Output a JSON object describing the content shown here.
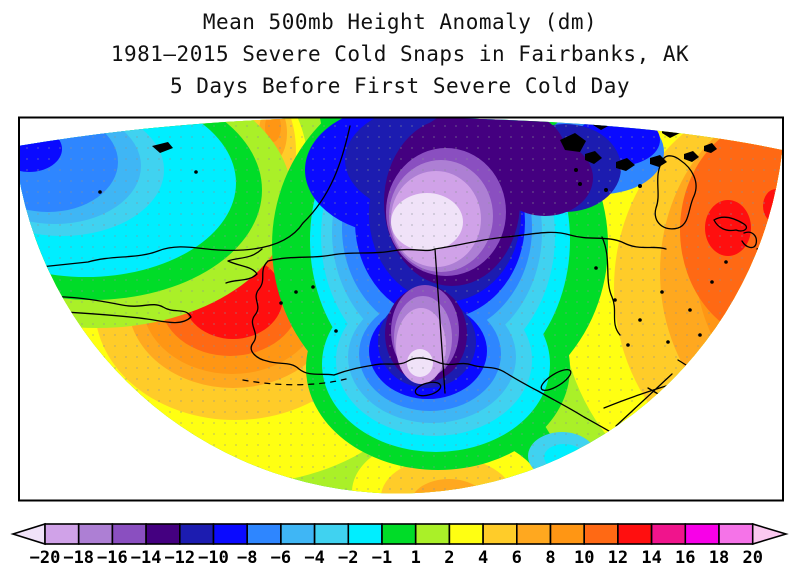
{
  "title": {
    "line1": "Mean 500mb Height Anomaly (dm)",
    "line2": "1981–2015 Severe Cold Snaps in Fairbanks, AK",
    "line3": "5 Days Before First Severe Cold Day"
  },
  "palette": {
    "m_lt_m20": "#F0E2F8",
    "m20_18": "#D0A2E8",
    "m18_16": "#AD7FD4",
    "m16_14": "#8A4FC0",
    "m14_12": "#440080",
    "m12_10": "#1C1CB0",
    "m10_8": "#0A0AFF",
    "m8_6": "#2E86FF",
    "m6_4": "#3FB6F5",
    "m4_2": "#40D2F0",
    "m2_1": "#00EEFF",
    "m1_1": "#00DC28",
    "p1_2": "#AAF028",
    "p2_4": "#FFFF12",
    "p4_6": "#FFCC29",
    "p6_8": "#FFA81F",
    "p8_10": "#FF9614",
    "p10_12": "#FF6914",
    "p12_14": "#FF0F0F",
    "p14_16": "#F0148C",
    "p16_18": "#F800E8",
    "p18_20": "#F573E8",
    "p_gt_20": "#FBC8F0",
    "frame": "#000000",
    "coastline": "#000000",
    "grid_dot": "#8A9096",
    "background": "#FFFFFF"
  },
  "colorbar": {
    "tick_labels": [
      "−20",
      "−18",
      "−16",
      "−14",
      "−12",
      "−10",
      "−8",
      "−6",
      "−4",
      "−2",
      "−1",
      "1",
      "2",
      "4",
      "6",
      "8",
      "10",
      "12",
      "14",
      "16",
      "18",
      "20"
    ],
    "segment_keys": [
      "m20_18",
      "m18_16",
      "m16_14",
      "m14_12",
      "m12_10",
      "m10_8",
      "m8_6",
      "m6_4",
      "m4_2",
      "m2_1",
      "m1_1",
      "p1_2",
      "p2_4",
      "p4_6",
      "p6_8",
      "p8_10",
      "p10_12",
      "p12_14",
      "p14_16",
      "p16_18",
      "p18_20"
    ],
    "arrow_left_key": "m_lt_m20",
    "arrow_right_key": "p_gt_20"
  },
  "chart_data": {
    "type": "heatmap",
    "title": "Mean 500mb Height Anomaly (dm)",
    "subtitle1": "1981–2015 Severe Cold Snaps in Fairbanks, AK",
    "subtitle2": "5 Days Before First Severe Cold Day",
    "units": "dm",
    "projection": "polar-stereographic sector: eastern Siberia / Bering Sea / Alaska / western & central North America",
    "contour_levels": [
      -20,
      -18,
      -16,
      -14,
      -12,
      -10,
      -8,
      -6,
      -4,
      -2,
      -1,
      1,
      2,
      4,
      6,
      8,
      10,
      12,
      14,
      16,
      18,
      20
    ],
    "contour_colors": [
      "#F0E2F8",
      "#D0A2E8",
      "#AD7FD4",
      "#8A4FC0",
      "#440080",
      "#1C1CB0",
      "#0A0AFF",
      "#2E86FF",
      "#3FB6F5",
      "#40D2F0",
      "#00EEFF",
      "#00DC28",
      "#AAF028",
      "#FFFF12",
      "#FFCC29",
      "#FFA81F",
      "#FF9614",
      "#FF6914",
      "#FF0F0F",
      "#F0148C",
      "#F800E8",
      "#F573E8",
      "#FBC8F0"
    ],
    "legend_position": "bottom colorbar with out-of-range arrows",
    "grid": "faint gray lat/lon dots over map",
    "features": [
      {
        "name": "primary negative anomaly center",
        "location": "northern Alaska / Arctic coast (near Alaska–Yukon border)",
        "value_dm": -20,
        "note": "closed center below -20 dm (pale lavender core)"
      },
      {
        "name": "secondary negative anomaly center",
        "location": "southwest Alaska / Bristol Bay",
        "value_dm": -20,
        "note": "small pale core at tip of southward trough lobe"
      },
      {
        "name": "western positive anomaly center",
        "location": "Sea of Okhotsk / Kamchatka region",
        "value_dm": 14,
        "note": "closed red maximum ~+12 to +14 dm"
      },
      {
        "name": "eastern positive anomaly center",
        "location": "Great Lakes / Hudson Bay region",
        "value_dm": 14,
        "note": "broad +8 to +12 dm ridge with small red spot"
      },
      {
        "name": "southern positive anomaly",
        "location": "subtropical central North Pacific (bottom of sector)",
        "value_dm": 8,
        "note": "orange maximum clipped by map edge"
      },
      {
        "name": "northwest negative area",
        "location": "East Siberian Arctic (top-left corner)",
        "value_dm": -8,
        "note": "cyan/blue pool in corner"
      }
    ]
  }
}
